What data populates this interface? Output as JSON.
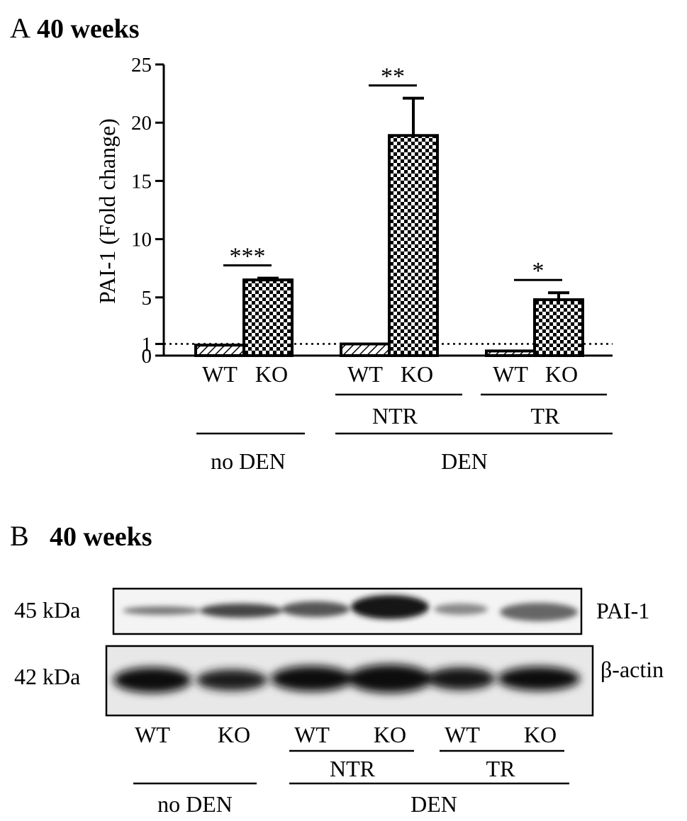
{
  "panel_a": {
    "letter": "A",
    "title": "40 weeks",
    "bar_labels": [
      "WT",
      "KO",
      "WT",
      "KO",
      "WT",
      "KO"
    ],
    "sub_groups": [
      "NTR",
      "TR"
    ],
    "groups": [
      "no DEN",
      "DEN"
    ],
    "significance": [
      "***",
      "**",
      "*"
    ]
  },
  "chart_data": {
    "type": "bar",
    "ylabel": "PAI-1 (Fold change)",
    "ylim": [
      0,
      25
    ],
    "yticks": [
      0,
      1,
      5,
      10,
      15,
      20,
      25
    ],
    "reference_line": 1,
    "grid": false,
    "categories": [
      "WT",
      "KO",
      "WT",
      "KO",
      "WT",
      "KO"
    ],
    "values": [
      0.9,
      6.5,
      1.0,
      18.9,
      0.4,
      4.8
    ],
    "errors": [
      0.05,
      0.15,
      0.05,
      3.2,
      0.05,
      0.6
    ],
    "patterns": [
      "hatch",
      "checker",
      "hatch",
      "checker",
      "hatch",
      "checker"
    ]
  },
  "panel_b": {
    "letter": "B",
    "title": "40 weeks",
    "blots": [
      {
        "marker": "45 kDa",
        "protein": "PAI-1"
      },
      {
        "marker": "42 kDa",
        "protein": "β-actin"
      }
    ],
    "lane_labels": [
      "WT",
      "KO",
      "WT",
      "KO",
      "WT",
      "KO"
    ],
    "sub_groups": [
      "NTR",
      "TR"
    ],
    "groups": [
      "no DEN",
      "DEN"
    ]
  },
  "colors": {
    "ink": "#000000",
    "background": "#ffffff"
  }
}
